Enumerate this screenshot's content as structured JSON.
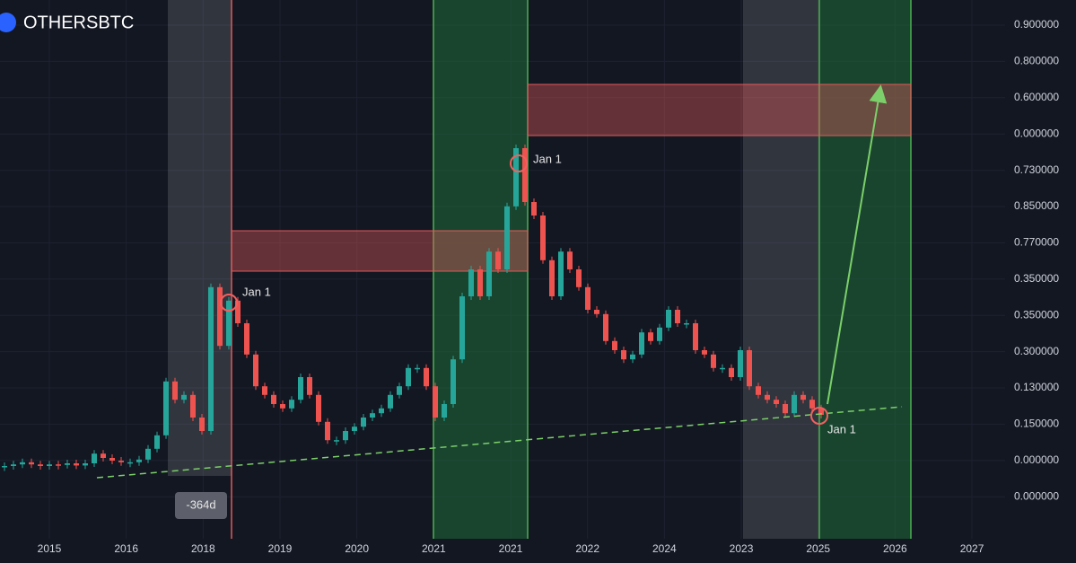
{
  "chart_data": {
    "type": "candlestick",
    "title": "OTHERSBTC",
    "x_axis_labels": [
      "2015",
      "2016",
      "2018",
      "2019",
      "2020",
      "2021",
      "2021",
      "2022",
      "2024",
      "2023",
      "2025",
      "2026",
      "2027"
    ],
    "y_axis_labels": [
      "0.900000",
      "0.800000",
      "0.600000",
      "0.000000",
      "0.730000",
      "0.850000",
      "0.770000",
      "0.350000",
      "0.350000",
      "0.300000",
      "0.130000",
      "0.150000",
      "0.000000",
      "0.000000"
    ],
    "annotations": [
      "Jan 1",
      "Jan 1",
      "Jan 1",
      "-364d"
    ],
    "ylim": [
      0,
      100
    ],
    "up_color": "#26a69a",
    "down_color": "#ef5350",
    "values": [
      13.5,
      13.8,
      14.2,
      13.8,
      13.5,
      13.8,
      13.7,
      14,
      13.6,
      14,
      15.8,
      15,
      14.5,
      14.2,
      14.2,
      14.7,
      16.7,
      19.2,
      29.2,
      25.8,
      26.7,
      22.5,
      20,
      46.7,
      35.8,
      44.2,
      40,
      34.2,
      28.3,
      26.7,
      25,
      24.2,
      25.8,
      30,
      26.7,
      21.7,
      18.3,
      18.3,
      20,
      20.8,
      22.5,
      23.3,
      24.2,
      26.7,
      28.3,
      31.7,
      31.7,
      28.3,
      22.5,
      25,
      33.3,
      45,
      50,
      45,
      53.3,
      50,
      61.7,
      72.5,
      62.5,
      60,
      51.7,
      45,
      53.3,
      50,
      46.7,
      42.5,
      41.7,
      36.7,
      35,
      33.3,
      34.2,
      38.3,
      36.7,
      39.2,
      42.5,
      40,
      40,
      35,
      34.2,
      31.7,
      31.7,
      30,
      35,
      28.3,
      26.7,
      25.8,
      25,
      23.3,
      26.7,
      25.8,
      24.2,
      23
    ]
  }
}
